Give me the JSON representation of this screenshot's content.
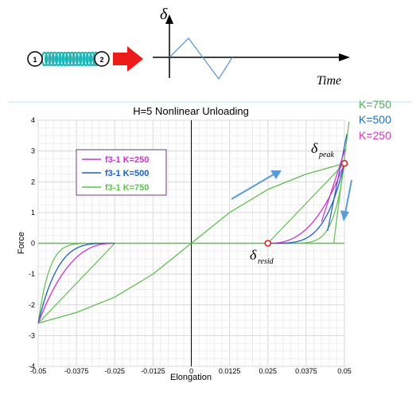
{
  "schematic": {
    "node1": "1",
    "node2": "2",
    "delta_symbol": "δ",
    "time_label": "Time"
  },
  "annotations": {
    "delta_peak_main": "δ",
    "delta_peak_sub": "peak",
    "delta_resid_main": "δ",
    "delta_resid_sub": "resid"
  },
  "side_labels": [
    {
      "text": "K=750",
      "color": "#4caf50"
    },
    {
      "text": "K=500",
      "color": "#1e6fc0"
    },
    {
      "text": "K=250",
      "color": "#d633c8"
    }
  ],
  "colors": {
    "k250": "#cc33cc",
    "k500": "#1f5fbf",
    "k750": "#5fbf4f",
    "arrow": "#5b9bd5",
    "marker": "#e02020"
  },
  "chart_data": {
    "type": "line",
    "title": "H=5 Nonlinear Unloading",
    "xlabel": "Elongation",
    "ylabel": "Force",
    "xlim": [
      -0.05,
      0.05
    ],
    "ylim": [
      -4,
      4
    ],
    "xticks": [
      "-0.05",
      "-0.0375",
      "-0.025",
      "-0.0125",
      "0",
      "0.0125",
      "0.025",
      "0.0375",
      "0.05"
    ],
    "yticks": [
      "-4",
      "-3",
      "-2",
      "-1",
      "0",
      "1",
      "2",
      "3",
      "4"
    ],
    "grid": true,
    "legend_position": "top-left",
    "backbone": {
      "x": [
        -0.05,
        -0.0375,
        -0.025,
        -0.0125,
        0,
        0.0125,
        0.025,
        0.0375,
        0.05
      ],
      "y": [
        -2.6,
        -2.25,
        -1.75,
        -1.0,
        0,
        1.0,
        1.75,
        2.25,
        2.6
      ]
    },
    "series": [
      {
        "name": "f3-1 K=250",
        "k": 250
      },
      {
        "name": "f3-1 K=500",
        "k": 500
      },
      {
        "name": "f3-1 K=750",
        "k": 750
      }
    ],
    "peak_point": {
      "x": 0.05,
      "y": 2.6
    },
    "resid_point": {
      "x": 0.025,
      "y": 0
    }
  }
}
